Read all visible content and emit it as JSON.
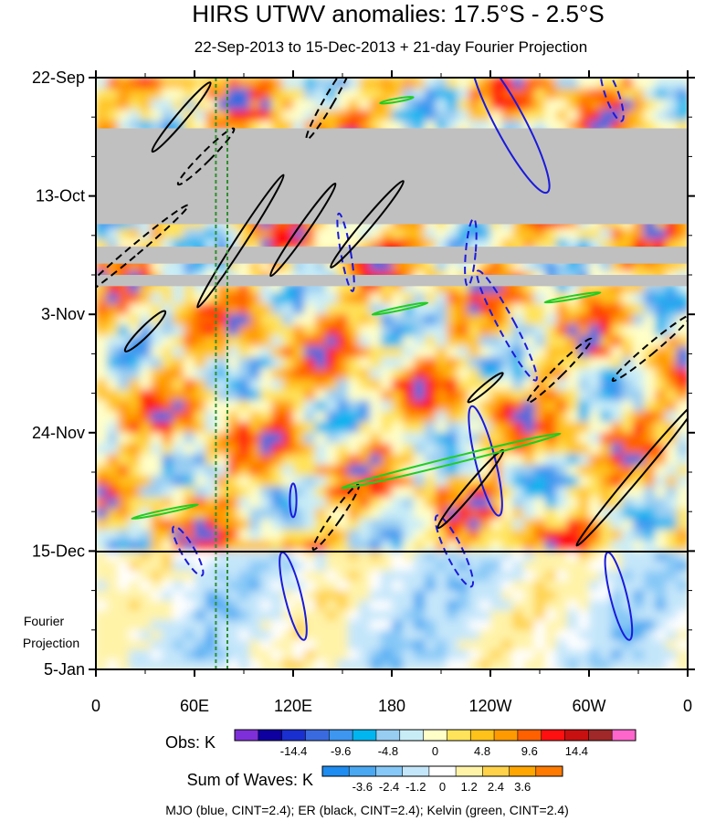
{
  "chart_data": {
    "type": "heatmap",
    "title": "HIRS UTWV anomalies: 17.5°S - 2.5°S",
    "subtitle": "22-Sep-2013 to 15-Dec-2013 + 21-day Fourier Projection",
    "x_ticks": [
      {
        "lon": 0,
        "label": "0"
      },
      {
        "lon": 60,
        "label": "60E"
      },
      {
        "lon": 120,
        "label": "120E"
      },
      {
        "lon": 180,
        "label": "180"
      },
      {
        "lon": 240,
        "label": "120W"
      },
      {
        "lon": 300,
        "label": "60W"
      },
      {
        "lon": 360,
        "label": "0"
      }
    ],
    "y_ticks": [
      {
        "day": 0,
        "label": "22-Sep"
      },
      {
        "day": 21,
        "label": "13-Oct"
      },
      {
        "day": 42,
        "label": "3-Nov"
      },
      {
        "day": 63,
        "label": "24-Nov"
      },
      {
        "day": 84,
        "label": "15-Dec"
      },
      {
        "day": 105,
        "label": "5-Jan"
      }
    ],
    "x_range": [
      0,
      360
    ],
    "y_range_days": [
      0,
      105
    ],
    "observation_end_day": 84,
    "projection_label_line1": "Fourier",
    "projection_label_line2": "Projection",
    "reference_longitudes": [
      73,
      80
    ],
    "missing_data_periods": [
      {
        "start_day": 9,
        "end_day": 26,
        "lon_start": 0,
        "lon_end": 360
      },
      {
        "start_day": 30,
        "end_day": 33,
        "lon_start": 0,
        "lon_end": 360
      },
      {
        "start_day": 35,
        "end_day": 37,
        "lon_start": 0,
        "lon_end": 360
      }
    ],
    "obs_colorbar": {
      "label": "Obs: K",
      "colors": [
        "#7f2fd9",
        "#0e00a0",
        "#1a2fd0",
        "#3a6ae0",
        "#3d96ef",
        "#00b6f0",
        "#98cdf2",
        "#c9edf7",
        "#ffffc8",
        "#ffe35a",
        "#ffc21a",
        "#ff9a00",
        "#ff6000",
        "#ff1010",
        "#c81010",
        "#a02828",
        "#ff66cc"
      ],
      "tick_labels": [
        "-14.4",
        "-9.6",
        "-4.8",
        "0",
        "4.8",
        "9.6",
        "14.4"
      ],
      "tick_values": [
        -14.4,
        -9.6,
        -4.8,
        0,
        4.8,
        9.6,
        14.4
      ]
    },
    "waves_colorbar": {
      "label": "Sum of Waves: K",
      "colors": [
        "#1e8cf0",
        "#4aa8f2",
        "#86c8f7",
        "#c4e6fa",
        "#ffffff",
        "#fff3a8",
        "#ffd24a",
        "#ffa600",
        "#ff7a00"
      ],
      "tick_labels": [
        "-3.6",
        "-2.4",
        "-1.2",
        "0",
        "1.2",
        "2.4",
        "3.6"
      ],
      "tick_values": [
        -3.6,
        -2.4,
        -1.2,
        0,
        1.2,
        2.4,
        3.6
      ]
    },
    "wave_contours": [
      {
        "wave": "MJO",
        "color": "#1a1adc",
        "sign": "positive",
        "lon": 252,
        "day": 8,
        "rx": 9,
        "ry": 14,
        "angle": -28
      },
      {
        "wave": "MJO",
        "color": "#1a1adc",
        "sign": "negative",
        "lon": 314,
        "day": 3,
        "rx": 4,
        "ry": 5,
        "angle": -20
      },
      {
        "wave": "MJO",
        "color": "#1a1adc",
        "sign": "negative",
        "lon": 152,
        "day": 31,
        "rx": 3,
        "ry": 7,
        "angle": -10
      },
      {
        "wave": "MJO",
        "color": "#1a1adc",
        "sign": "negative",
        "lon": 228,
        "day": 31,
        "rx": 3,
        "ry": 6,
        "angle": 5
      },
      {
        "wave": "MJO",
        "color": "#1a1adc",
        "sign": "negative",
        "lon": 250,
        "day": 44,
        "rx": 5,
        "ry": 11,
        "angle": -28
      },
      {
        "wave": "MJO",
        "color": "#1a1adc",
        "sign": "positive",
        "lon": 237,
        "day": 68,
        "rx": 6,
        "ry": 10,
        "angle": -14
      },
      {
        "wave": "MJO",
        "color": "#1a1adc",
        "sign": "positive",
        "lon": 120,
        "day": 92,
        "rx": 5,
        "ry": 8,
        "angle": -14
      },
      {
        "wave": "MJO",
        "color": "#1a1adc",
        "sign": "positive",
        "lon": 318,
        "day": 92,
        "rx": 5,
        "ry": 8,
        "angle": -14
      },
      {
        "wave": "MJO",
        "color": "#1a1adc",
        "sign": "negative",
        "lon": 218,
        "day": 84,
        "rx": 5,
        "ry": 7,
        "angle": -26
      },
      {
        "wave": "MJO",
        "color": "#1a1adc",
        "sign": "negative",
        "lon": 56,
        "day": 84,
        "rx": 4,
        "ry": 5,
        "angle": -30
      },
      {
        "wave": "MJO",
        "color": "#1a1adc",
        "sign": "positive",
        "lon": 120,
        "day": 75,
        "rx": 2,
        "ry": 3,
        "angle": 0
      },
      {
        "wave": "ER",
        "color": "#000000",
        "sign": "positive",
        "lon": 52,
        "day": 7,
        "rx": 3,
        "ry": 8,
        "angle": 40
      },
      {
        "wave": "ER",
        "color": "#000000",
        "sign": "negative",
        "lon": 67,
        "day": 14,
        "rx": 3,
        "ry": 7,
        "angle": 45
      },
      {
        "wave": "ER",
        "color": "#000000",
        "sign": "positive",
        "lon": 88,
        "day": 29,
        "rx": 3,
        "ry": 14,
        "angle": 33
      },
      {
        "wave": "ER",
        "color": "#000000",
        "sign": "negative",
        "lon": 22,
        "day": 31,
        "rx": 3,
        "ry": 13,
        "angle": 50
      },
      {
        "wave": "ER",
        "color": "#000000",
        "sign": "positive",
        "lon": 165,
        "day": 26,
        "rx": 3,
        "ry": 10,
        "angle": 40
      },
      {
        "wave": "ER",
        "color": "#000000",
        "sign": "negative",
        "lon": 142,
        "day": 4,
        "rx": 3,
        "ry": 8,
        "angle": 30
      },
      {
        "wave": "ER",
        "color": "#000000",
        "sign": "positive",
        "lon": 126,
        "day": 27,
        "rx": 3,
        "ry": 10,
        "angle": 35
      },
      {
        "wave": "ER",
        "color": "#000000",
        "sign": "negative",
        "lon": 282,
        "day": 52,
        "rx": 3,
        "ry": 8,
        "angle": 45
      },
      {
        "wave": "ER",
        "color": "#000000",
        "sign": "negative",
        "lon": 338,
        "day": 48,
        "rx": 3,
        "ry": 9,
        "angle": 50
      },
      {
        "wave": "ER",
        "color": "#000000",
        "sign": "positive",
        "lon": 330,
        "day": 70,
        "rx": 3,
        "ry": 17,
        "angle": 40
      },
      {
        "wave": "ER",
        "color": "#000000",
        "sign": "positive",
        "lon": 228,
        "day": 73,
        "rx": 3,
        "ry": 9,
        "angle": 40
      },
      {
        "wave": "ER",
        "color": "#000000",
        "sign": "negative",
        "lon": 146,
        "day": 78,
        "rx": 3,
        "ry": 7,
        "angle": 35
      },
      {
        "wave": "ER",
        "color": "#000000",
        "sign": "positive",
        "lon": 30,
        "day": 45,
        "rx": 3,
        "ry": 5,
        "angle": 45
      },
      {
        "wave": "ER",
        "color": "#000000",
        "sign": "positive",
        "lon": 237,
        "day": 55,
        "rx": 2,
        "ry": 4,
        "angle": 50
      },
      {
        "wave": "Kelvin",
        "color": "#22cc22",
        "sign": "positive",
        "lon": 216,
        "day": 68,
        "rx": 2,
        "ry": 20,
        "angle": 76
      },
      {
        "wave": "Kelvin",
        "color": "#22cc22",
        "sign": "positive",
        "lon": 185,
        "day": 41,
        "rx": 1,
        "ry": 5,
        "angle": 78
      },
      {
        "wave": "Kelvin",
        "color": "#22cc22",
        "sign": "positive",
        "lon": 290,
        "day": 39,
        "rx": 1,
        "ry": 5,
        "angle": 80
      },
      {
        "wave": "Kelvin",
        "color": "#22cc22",
        "sign": "positive",
        "lon": 42,
        "day": 77,
        "rx": 1,
        "ry": 6,
        "angle": 78
      },
      {
        "wave": "Kelvin",
        "color": "#22cc22",
        "sign": "positive",
        "lon": 183,
        "day": 4,
        "rx": 1,
        "ry": 3,
        "angle": 80
      }
    ],
    "footnote": "MJO (blue, CINT=2.4); ER (black, CINT=2.4); Kelvin (green, CINT=2.4)"
  }
}
